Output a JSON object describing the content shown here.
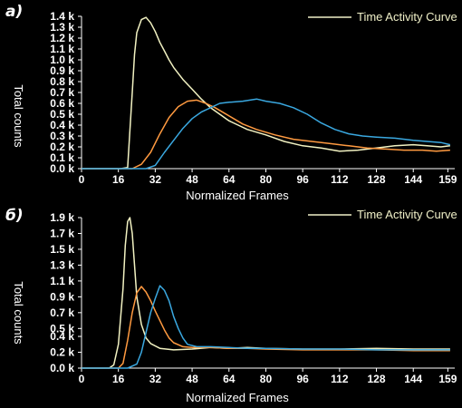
{
  "chart_data": [
    {
      "panel_label": "а)",
      "type": "line",
      "legend": {
        "label": "Time Activity Curve",
        "color": "#f0f0c8",
        "position": "top-right"
      },
      "xlabel": "Normalized Frames",
      "ylabel": "Total counts",
      "xlim": [
        0,
        162
      ],
      "ylim": [
        0,
        1400
      ],
      "x_ticks": [
        0,
        16,
        32,
        48,
        64,
        80,
        96,
        112,
        128,
        144,
        159
      ],
      "y_ticks": [
        {
          "value": 0,
          "label": "0.0 k"
        },
        {
          "value": 100,
          "label": "0.1 k"
        },
        {
          "value": 200,
          "label": "0.2 k"
        },
        {
          "value": 300,
          "label": "0.3 k"
        },
        {
          "value": 400,
          "label": "0.4 k"
        },
        {
          "value": 500,
          "label": "0.5 k"
        },
        {
          "value": 600,
          "label": "0.6 k"
        },
        {
          "value": 700,
          "label": "0.7 k"
        },
        {
          "value": 800,
          "label": "0.8 k"
        },
        {
          "value": 900,
          "label": "0.9 k"
        },
        {
          "value": 1000,
          "label": "1.0 k"
        },
        {
          "value": 1100,
          "label": "1.1 k"
        },
        {
          "value": 1200,
          "label": "1.2 k"
        },
        {
          "value": 1300,
          "label": "1.3 k"
        },
        {
          "value": 1400,
          "label": "1.4 k"
        }
      ],
      "grid": false,
      "series": [
        {
          "color": "#f2f2c2",
          "points": [
            [
              0,
              0
            ],
            [
              17,
              0
            ],
            [
              20,
              10
            ],
            [
              21,
              350
            ],
            [
              22,
              700
            ],
            [
              23,
              1050
            ],
            [
              24,
              1250
            ],
            [
              26,
              1370
            ],
            [
              28,
              1390
            ],
            [
              30,
              1340
            ],
            [
              32,
              1260
            ],
            [
              34,
              1160
            ],
            [
              36,
              1080
            ],
            [
              38,
              1000
            ],
            [
              40,
              930
            ],
            [
              44,
              820
            ],
            [
              48,
              730
            ],
            [
              52,
              640
            ],
            [
              56,
              560
            ],
            [
              60,
              500
            ],
            [
              64,
              440
            ],
            [
              68,
              400
            ],
            [
              72,
              360
            ],
            [
              80,
              310
            ],
            [
              88,
              250
            ],
            [
              96,
              210
            ],
            [
              104,
              190
            ],
            [
              112,
              160
            ],
            [
              120,
              170
            ],
            [
              128,
              190
            ],
            [
              136,
              210
            ],
            [
              144,
              220
            ],
            [
              150,
              210
            ],
            [
              156,
              200
            ],
            [
              160,
              210
            ]
          ]
        },
        {
          "color": "#ff9a40",
          "points": [
            [
              0,
              0
            ],
            [
              22,
              0
            ],
            [
              26,
              40
            ],
            [
              30,
              150
            ],
            [
              34,
              320
            ],
            [
              38,
              470
            ],
            [
              42,
              570
            ],
            [
              46,
              620
            ],
            [
              50,
              630
            ],
            [
              54,
              600
            ],
            [
              58,
              560
            ],
            [
              62,
              510
            ],
            [
              66,
              460
            ],
            [
              70,
              410
            ],
            [
              76,
              360
            ],
            [
              84,
              310
            ],
            [
              92,
              270
            ],
            [
              100,
              250
            ],
            [
              108,
              230
            ],
            [
              116,
              210
            ],
            [
              124,
              190
            ],
            [
              132,
              180
            ],
            [
              140,
              170
            ],
            [
              148,
              170
            ],
            [
              154,
              160
            ],
            [
              160,
              170
            ]
          ]
        },
        {
          "color": "#3aa8e0",
          "points": [
            [
              0,
              0
            ],
            [
              28,
              0
            ],
            [
              32,
              30
            ],
            [
              36,
              150
            ],
            [
              40,
              260
            ],
            [
              44,
              370
            ],
            [
              48,
              460
            ],
            [
              52,
              520
            ],
            [
              56,
              560
            ],
            [
              60,
              600
            ],
            [
              64,
              610
            ],
            [
              70,
              620
            ],
            [
              76,
              640
            ],
            [
              80,
              620
            ],
            [
              86,
              600
            ],
            [
              92,
              560
            ],
            [
              98,
              500
            ],
            [
              104,
              420
            ],
            [
              110,
              360
            ],
            [
              116,
              320
            ],
            [
              122,
              300
            ],
            [
              128,
              290
            ],
            [
              136,
              280
            ],
            [
              144,
              260
            ],
            [
              150,
              250
            ],
            [
              156,
              240
            ],
            [
              160,
              220
            ]
          ]
        }
      ]
    },
    {
      "panel_label": "б)",
      "type": "line",
      "legend": {
        "label": "Time Activity Curve",
        "color": "#f0f0c8",
        "position": "top-right"
      },
      "xlabel": "Normalized Frames",
      "ylabel": "Total counts",
      "xlim": [
        0,
        162
      ],
      "ylim": [
        0,
        1900
      ],
      "x_ticks": [
        0,
        16,
        32,
        48,
        64,
        80,
        96,
        112,
        128,
        144,
        159
      ],
      "y_ticks": [
        {
          "value": 0,
          "label": "0.0 k"
        },
        {
          "value": 200,
          "label": "0.2 k"
        },
        {
          "value": 400,
          "label": "0.4 k"
        },
        {
          "value": 500,
          "label": "0.5 k"
        },
        {
          "value": 700,
          "label": "0.7 k"
        },
        {
          "value": 900,
          "label": "0.9 k"
        },
        {
          "value": 1100,
          "label": "1.1 k"
        },
        {
          "value": 1300,
          "label": "1.3 k"
        },
        {
          "value": 1500,
          "label": "1.5 k"
        },
        {
          "value": 1700,
          "label": "1.7 k"
        },
        {
          "value": 1900,
          "label": "1.9 k"
        }
      ],
      "grid": false,
      "series": [
        {
          "color": "#f2f2c2",
          "points": [
            [
              0,
              0
            ],
            [
              12,
              0
            ],
            [
              14,
              40
            ],
            [
              16,
              300
            ],
            [
              18,
              1000
            ],
            [
              19,
              1550
            ],
            [
              20,
              1850
            ],
            [
              21,
              1900
            ],
            [
              22,
              1700
            ],
            [
              23,
              1300
            ],
            [
              24,
              900
            ],
            [
              26,
              550
            ],
            [
              28,
              380
            ],
            [
              30,
              310
            ],
            [
              34,
              250
            ],
            [
              40,
              230
            ],
            [
              48,
              240
            ],
            [
              56,
              260
            ],
            [
              64,
              250
            ],
            [
              72,
              260
            ],
            [
              80,
              250
            ],
            [
              96,
              240
            ],
            [
              112,
              240
            ],
            [
              128,
              250
            ],
            [
              144,
              240
            ],
            [
              160,
              240
            ]
          ]
        },
        {
          "color": "#ff9a40",
          "points": [
            [
              0,
              0
            ],
            [
              16,
              0
            ],
            [
              18,
              60
            ],
            [
              20,
              350
            ],
            [
              22,
              700
            ],
            [
              24,
              950
            ],
            [
              26,
              1030
            ],
            [
              28,
              960
            ],
            [
              30,
              850
            ],
            [
              32,
              720
            ],
            [
              34,
              600
            ],
            [
              36,
              480
            ],
            [
              38,
              380
            ],
            [
              40,
              320
            ],
            [
              44,
              270
            ],
            [
              48,
              260
            ],
            [
              56,
              260
            ],
            [
              64,
              250
            ],
            [
              72,
              250
            ],
            [
              80,
              240
            ],
            [
              96,
              230
            ],
            [
              112,
              230
            ],
            [
              128,
              230
            ],
            [
              144,
              220
            ],
            [
              160,
              220
            ]
          ]
        },
        {
          "color": "#3aa8e0",
          "points": [
            [
              0,
              0
            ],
            [
              20,
              0
            ],
            [
              24,
              50
            ],
            [
              26,
              200
            ],
            [
              28,
              450
            ],
            [
              30,
              700
            ],
            [
              32,
              880
            ],
            [
              34,
              1040
            ],
            [
              36,
              980
            ],
            [
              38,
              850
            ],
            [
              40,
              650
            ],
            [
              42,
              500
            ],
            [
              44,
              380
            ],
            [
              46,
              300
            ],
            [
              50,
              270
            ],
            [
              56,
              270
            ],
            [
              64,
              260
            ],
            [
              72,
              250
            ],
            [
              80,
              250
            ],
            [
              96,
              240
            ],
            [
              112,
              240
            ],
            [
              128,
              230
            ],
            [
              144,
              230
            ],
            [
              160,
              230
            ]
          ]
        }
      ]
    }
  ]
}
